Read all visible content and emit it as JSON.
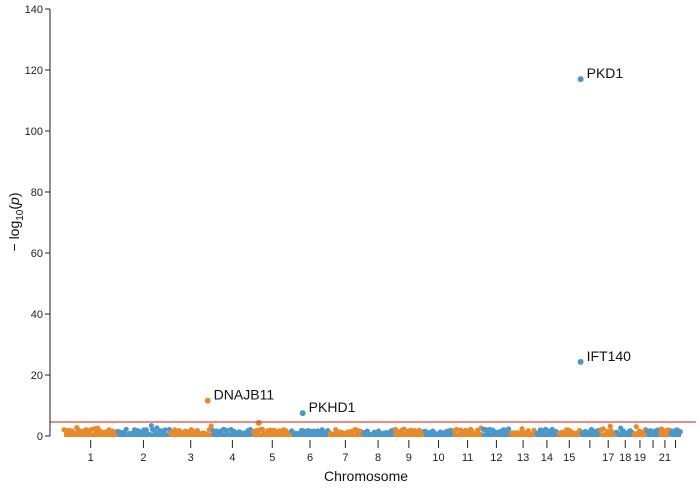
{
  "chart_data": {
    "type": "scatter",
    "subtype": "manhattan",
    "title": "",
    "xlabel": "Chromosome",
    "ylabel": "−log10(p)",
    "ylim": [
      0,
      140
    ],
    "yticks": [
      0,
      20,
      40,
      60,
      80,
      100,
      120,
      140
    ],
    "grid": false,
    "legend": "none",
    "chromosomes": [
      "1",
      "2",
      "3",
      "4",
      "5",
      "6",
      "7",
      "8",
      "9",
      "10",
      "11",
      "12",
      "13",
      "14",
      "15",
      "16",
      "17",
      "18",
      "19",
      "20",
      "21",
      "22"
    ],
    "chromosome_tick_labels": [
      "1",
      "2",
      "3",
      "4",
      "5",
      "6",
      "7",
      "8",
      "9",
      "10",
      "11",
      "12",
      "13",
      "14",
      "15",
      "",
      "17",
      "18",
      "19",
      "",
      "21",
      ""
    ],
    "colors": {
      "odd_chromosomes": "#E8892B",
      "even_chromosomes": "#4A98CB",
      "threshold_line": "#E0473C"
    },
    "significance_threshold": 4.6,
    "labeled_hits": [
      {
        "gene": "PKD1",
        "chromosome": "16",
        "y": 117
      },
      {
        "gene": "IFT140",
        "chromosome": "16",
        "y": 24.3
      },
      {
        "gene": "DNAJB11",
        "chromosome": "3",
        "y": 11.6
      },
      {
        "gene": "PKHD1",
        "chromosome": "6",
        "y": 7.5
      }
    ],
    "other_notable_points": [
      {
        "chromosome": "5",
        "y": 4.3
      }
    ]
  }
}
